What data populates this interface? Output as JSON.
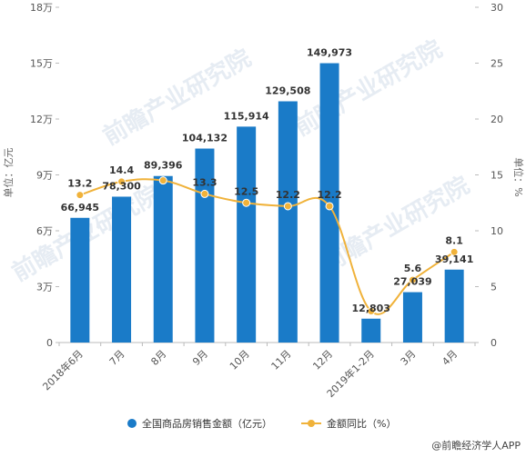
{
  "chart_data": {
    "type": "bar",
    "categories": [
      "2018年6月",
      "7月",
      "8月",
      "9月",
      "10月",
      "11月",
      "12月",
      "2019年1-2月",
      "3月",
      "4月"
    ],
    "series": [
      {
        "name": "全国商品房销售金额（亿元）",
        "type": "bar",
        "axis": "left",
        "color": "#1a7bc8",
        "values": [
          66945,
          78300,
          89396,
          104132,
          115914,
          129508,
          149973,
          12803,
          27039,
          39141
        ],
        "labels": [
          "66,945",
          "78,300",
          "89,396",
          "104,132",
          "115,914",
          "129,508",
          "149,973",
          "12,803",
          "27,039",
          "39,141"
        ]
      },
      {
        "name": "金额同比（%）",
        "type": "line",
        "axis": "right",
        "color": "#f0b23a",
        "values": [
          13.2,
          14.4,
          14.5,
          13.3,
          12.5,
          12.2,
          12.2,
          2.8,
          5.6,
          8.1
        ],
        "labels": [
          "13.2",
          "14.4",
          "",
          "13.3",
          "12.5",
          "12.2",
          "12.2",
          "",
          "5.6",
          "8.1"
        ]
      }
    ],
    "left_axis": {
      "label": "单位：亿元",
      "ylim": [
        0,
        180000
      ],
      "ticks": [
        0,
        30000,
        60000,
        90000,
        120000,
        150000,
        180000
      ],
      "tick_labels": [
        "0",
        "3万",
        "6万",
        "9万",
        "12万",
        "15万",
        "18万"
      ]
    },
    "right_axis": {
      "label": "单位：%",
      "ylim": [
        0,
        30
      ],
      "ticks": [
        0,
        5,
        10,
        15,
        20,
        25,
        30
      ],
      "tick_labels": [
        "0",
        "5",
        "10",
        "15",
        "20",
        "25",
        "30"
      ]
    },
    "grid": false,
    "legend": "bottom"
  },
  "watermark": "前瞻产业研究院",
  "source": "@前瞻经济学人APP"
}
